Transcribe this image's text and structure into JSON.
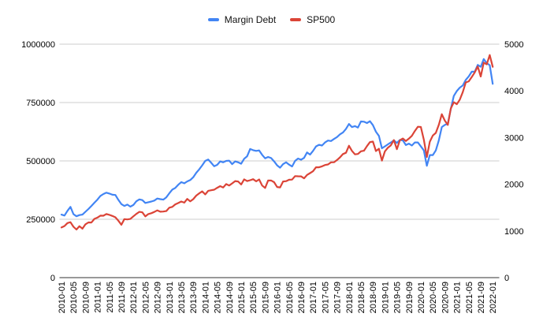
{
  "chart_data": {
    "type": "line",
    "title": "",
    "legend_position": "top-center",
    "grid": true,
    "background": "#ffffff",
    "gridline_color": "#cccccc",
    "baseline_color": "#333333",
    "label_color": "#000000",
    "x_axis": {
      "tick_labels": [
        "2010-01",
        "2010-05",
        "2010-09",
        "2011-01",
        "2011-05",
        "2011-09",
        "2012-01",
        "2012-05",
        "2012-09",
        "2013-01",
        "2013-05",
        "2013-09",
        "2014-01",
        "2014-05",
        "2014-09",
        "2015-01",
        "2015-05",
        "2015-09",
        "2016-01",
        "2016-05",
        "2016-09",
        "2017-01",
        "2017-05",
        "2017-09",
        "2018-01",
        "2018-05",
        "2018-09",
        "2019-01",
        "2019-05",
        "2019-09",
        "2020-01",
        "2020-05",
        "2020-09",
        "2021-01",
        "2021-05",
        "2021-09",
        "2022-01"
      ],
      "tick_every_n_points": 4
    },
    "left_axis": {
      "tick_labels": [
        "0",
        "250000",
        "500000",
        "750000",
        "1000000"
      ],
      "ticks": [
        0,
        250000,
        500000,
        750000,
        1000000
      ],
      "range": [
        0,
        1000000
      ]
    },
    "right_axis": {
      "tick_labels": [
        "0",
        "1000",
        "2000",
        "3000",
        "4000",
        "5000"
      ],
      "ticks": [
        0,
        1000,
        2000,
        3000,
        4000,
        5000
      ],
      "range": [
        0,
        5000
      ]
    },
    "x": [
      "2010-01",
      "2010-02",
      "2010-03",
      "2010-04",
      "2010-05",
      "2010-06",
      "2010-07",
      "2010-08",
      "2010-09",
      "2010-10",
      "2010-11",
      "2010-12",
      "2011-01",
      "2011-02",
      "2011-03",
      "2011-04",
      "2011-05",
      "2011-06",
      "2011-07",
      "2011-08",
      "2011-09",
      "2011-10",
      "2011-11",
      "2011-12",
      "2012-01",
      "2012-02",
      "2012-03",
      "2012-04",
      "2012-05",
      "2012-06",
      "2012-07",
      "2012-08",
      "2012-09",
      "2012-10",
      "2012-11",
      "2012-12",
      "2013-01",
      "2013-02",
      "2013-03",
      "2013-04",
      "2013-05",
      "2013-06",
      "2013-07",
      "2013-08",
      "2013-09",
      "2013-10",
      "2013-11",
      "2013-12",
      "2014-01",
      "2014-02",
      "2014-03",
      "2014-04",
      "2014-05",
      "2014-06",
      "2014-07",
      "2014-08",
      "2014-09",
      "2014-10",
      "2014-11",
      "2014-12",
      "2015-01",
      "2015-02",
      "2015-03",
      "2015-04",
      "2015-05",
      "2015-06",
      "2015-07",
      "2015-08",
      "2015-09",
      "2015-10",
      "2015-11",
      "2015-12",
      "2016-01",
      "2016-02",
      "2016-03",
      "2016-04",
      "2016-05",
      "2016-06",
      "2016-07",
      "2016-08",
      "2016-09",
      "2016-10",
      "2016-11",
      "2016-12",
      "2017-01",
      "2017-02",
      "2017-03",
      "2017-04",
      "2017-05",
      "2017-06",
      "2017-07",
      "2017-08",
      "2017-09",
      "2017-10",
      "2017-11",
      "2017-12",
      "2018-01",
      "2018-02",
      "2018-03",
      "2018-04",
      "2018-05",
      "2018-06",
      "2018-07",
      "2018-08",
      "2018-09",
      "2018-10",
      "2018-11",
      "2018-12",
      "2019-01",
      "2019-02",
      "2019-03",
      "2019-04",
      "2019-05",
      "2019-06",
      "2019-07",
      "2019-08",
      "2019-09",
      "2019-10",
      "2019-11",
      "2019-12",
      "2020-01",
      "2020-02",
      "2020-03",
      "2020-04",
      "2020-05",
      "2020-06",
      "2020-07",
      "2020-08",
      "2020-09",
      "2020-10",
      "2020-11",
      "2020-12",
      "2021-01",
      "2021-02",
      "2021-03",
      "2021-04",
      "2021-05",
      "2021-06",
      "2021-07",
      "2021-08",
      "2021-09",
      "2021-10",
      "2021-11",
      "2021-12",
      "2022-01"
    ],
    "series": [
      {
        "name": "Margin Debt",
        "color": "#4285f4",
        "axis": "left",
        "values": [
          270000,
          266000,
          286000,
          303000,
          272000,
          263000,
          268000,
          270000,
          282000,
          294000,
          307000,
          321000,
          334000,
          350000,
          358000,
          364000,
          360000,
          355000,
          354000,
          333000,
          315000,
          307000,
          313000,
          304000,
          311000,
          327000,
          335000,
          332000,
          320000,
          323000,
          326000,
          330000,
          339000,
          336000,
          334000,
          344000,
          361000,
          377000,
          384000,
          398000,
          409000,
          404000,
          412000,
          418000,
          430000,
          449000,
          464000,
          481000,
          500000,
          506000,
          492000,
          477000,
          483000,
          498000,
          494000,
          500000,
          501000,
          486000,
          498000,
          494000,
          488000,
          509000,
          520000,
          551000,
          546000,
          543000,
          545000,
          526000,
          511000,
          517000,
          512000,
          498000,
          481000,
          471000,
          486000,
          494000,
          484000,
          476000,
          500000,
          510000,
          505000,
          513000,
          536000,
          527000,
          543000,
          562000,
          569000,
          566000,
          579000,
          587000,
          585000,
          594000,
          602000,
          614000,
          622000,
          637000,
          658000,
          645000,
          649000,
          643000,
          669000,
          668000,
          662000,
          670000,
          653000,
          625000,
          607000,
          554000,
          562000,
          571000,
          579000,
          588000,
          577000,
          590000,
          588000,
          568000,
          574000,
          566000,
          579000,
          579000,
          562000,
          545000,
          479000,
          525000,
          525000,
          545000,
          588000,
          645000,
          654000,
          659000,
          722000,
          778000,
          799000,
          814000,
          823000,
          847000,
          862000,
          882000,
          882000,
          911000,
          903000,
          936000,
          919000,
          910000,
          830000
        ]
      },
      {
        "name": "SP500",
        "color": "#db4437",
        "axis": "right",
        "values": [
          1073.87,
          1104.49,
          1169.43,
          1186.69,
          1089.41,
          1030.71,
          1101.6,
          1049.33,
          1141.2,
          1183.26,
          1180.55,
          1257.64,
          1286.12,
          1327.22,
          1325.83,
          1363.61,
          1345.2,
          1320.64,
          1292.28,
          1218.89,
          1131.42,
          1253.3,
          1246.96,
          1257.6,
          1312.41,
          1365.68,
          1408.47,
          1397.91,
          1310.33,
          1362.16,
          1379.32,
          1406.58,
          1440.67,
          1412.16,
          1416.18,
          1426.19,
          1498.11,
          1514.68,
          1569.19,
          1597.57,
          1630.74,
          1606.28,
          1685.73,
          1632.97,
          1681.55,
          1756.54,
          1805.81,
          1848.36,
          1782.59,
          1859.45,
          1872.34,
          1883.95,
          1923.57,
          1960.23,
          1930.67,
          2003.37,
          1972.29,
          2018.05,
          2067.56,
          2058.9,
          1994.99,
          2104.5,
          2067.89,
          2085.51,
          2107.39,
          2063.11,
          2103.84,
          1972.18,
          1920.03,
          2079.36,
          2080.41,
          2043.94,
          1940.24,
          1932.23,
          2059.74,
          2065.3,
          2096.96,
          2098.86,
          2173.6,
          2170.95,
          2168.27,
          2126.15,
          2198.81,
          2238.83,
          2278.87,
          2363.64,
          2362.72,
          2384.2,
          2411.8,
          2423.41,
          2470.3,
          2471.65,
          2519.36,
          2575.26,
          2647.58,
          2673.61,
          2823.81,
          2713.83,
          2640.87,
          2648.05,
          2705.27,
          2718.37,
          2816.29,
          2901.52,
          2913.98,
          2711.74,
          2760.17,
          2506.85,
          2704.1,
          2784.49,
          2834.4,
          2945.83,
          2752.06,
          2941.76,
          2980.38,
          2926.46,
          2976.74,
          3037.56,
          3140.98,
          3230.78,
          3225.52,
          2954.22,
          2584.59,
          2912.43,
          3044.31,
          3100.29,
          3271.12,
          3500.31,
          3363.0,
          3269.96,
          3621.63,
          3756.07,
          3714.24,
          3811.15,
          3972.89,
          4181.17,
          4204.11,
          4297.5,
          4395.26,
          4522.68,
          4307.54,
          4605.38,
          4567.0,
          4766.18,
          4515.55
        ]
      }
    ]
  }
}
